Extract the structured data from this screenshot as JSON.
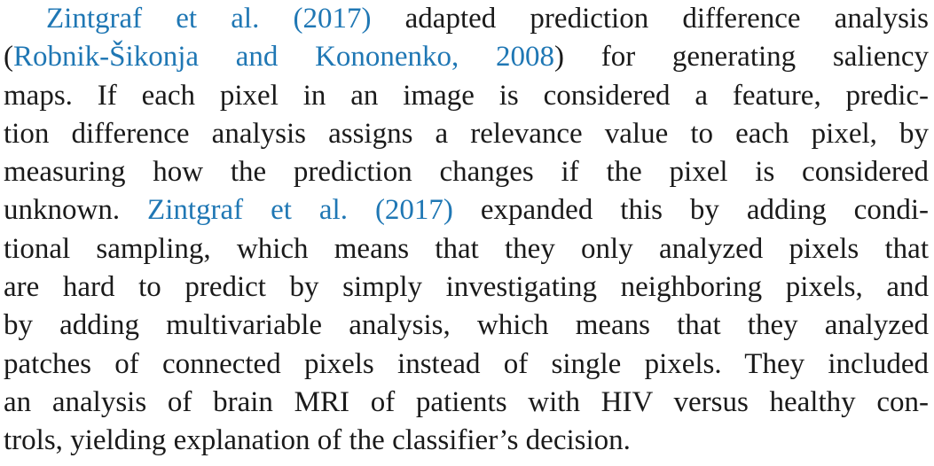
{
  "paragraph": {
    "lines": [
      [
        {
          "text": "Zintgraf et al. (2017)",
          "cite": true
        },
        {
          "text": " adapted prediction difference analysis",
          "cite": false
        }
      ],
      [
        {
          "text": "(",
          "cite": false
        },
        {
          "text": "Robnik-Šikonja and Kononenko, 2008",
          "cite": true
        },
        {
          "text": ") for generating saliency",
          "cite": false
        }
      ],
      [
        {
          "text": "maps. If each pixel in an image is considered a feature, predic-",
          "cite": false
        }
      ],
      [
        {
          "text": "tion difference analysis assigns a relevance value to each pixel, by",
          "cite": false
        }
      ],
      [
        {
          "text": "measuring how the prediction changes if the pixel is considered",
          "cite": false
        }
      ],
      [
        {
          "text": "unknown. ",
          "cite": false
        },
        {
          "text": "Zintgraf et al. (2017)",
          "cite": true
        },
        {
          "text": " expanded this by adding condi-",
          "cite": false
        }
      ],
      [
        {
          "text": "tional sampling, which means that they only analyzed pixels that",
          "cite": false
        }
      ],
      [
        {
          "text": "are hard to predict by simply investigating neighboring pixels, and",
          "cite": false
        }
      ],
      [
        {
          "text": "by adding multivariable analysis, which means that they analyzed",
          "cite": false
        }
      ],
      [
        {
          "text": "patches of connected pixels instead of single pixels. They included",
          "cite": false
        }
      ],
      [
        {
          "text": "an analysis of brain MRI of patients with HIV versus healthy con-",
          "cite": false
        }
      ],
      [
        {
          "text": "trols, yielding explanation of the classifier’s decision.",
          "cite": false
        }
      ]
    ]
  },
  "colors": {
    "text": "#1a1a1a",
    "citation": "#1f77b4",
    "background": "#ffffff"
  }
}
